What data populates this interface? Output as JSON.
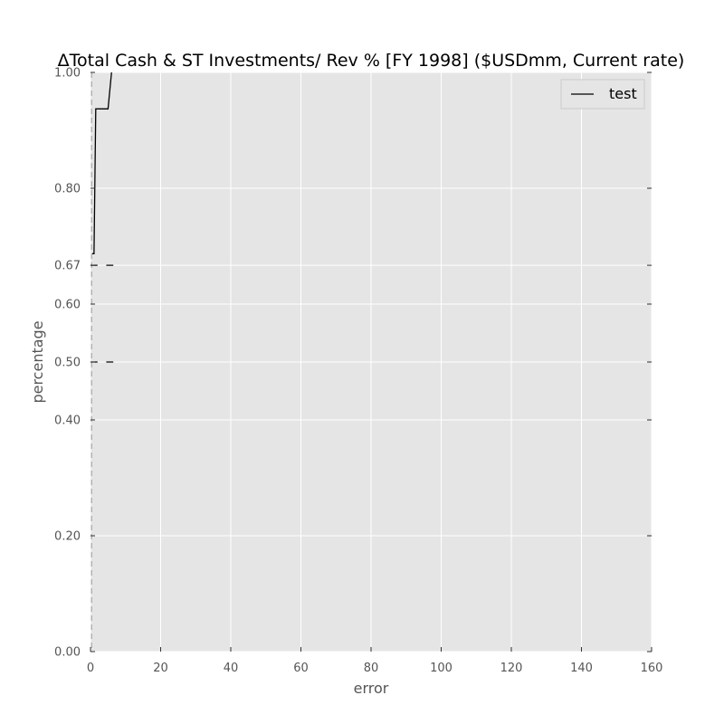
{
  "chart_data": {
    "type": "line",
    "title": "ΔTotal Cash & ST Investments/ Rev % [FY 1998] ($USDmm, Current rate)",
    "xlabel": "error",
    "ylabel": "percentage",
    "xlim": [
      0,
      160
    ],
    "ylim": [
      0,
      1
    ],
    "x_ticks": [
      0,
      20,
      40,
      60,
      80,
      100,
      120,
      140,
      160
    ],
    "x_tick_labels": [
      "0",
      "20",
      "40",
      "60",
      "80",
      "100",
      "120",
      "140",
      "160"
    ],
    "y_ticks": [
      0.0,
      0.2,
      0.4,
      0.5,
      0.6,
      0.667,
      0.8,
      1.0
    ],
    "y_tick_labels": [
      "0.00",
      "0.20",
      "0.40",
      "0.50",
      "0.60",
      "0.67",
      "0.80",
      "1.00"
    ],
    "grid": true,
    "legend": "top-right",
    "series": [
      {
        "name": "test",
        "color": "#000000",
        "x": [
          0.5,
          1,
          1.5,
          2,
          5,
          6
        ],
        "y": [
          0.687,
          0.687,
          0.937,
          0.937,
          0.937,
          1.0
        ]
      }
    ],
    "reference_lines": {
      "vertical_dashed_x": 0.3,
      "horizontal_dash_levels": [
        0.667,
        0.5
      ],
      "dash_segments_x": [
        [
          0,
          2
        ],
        [
          4.5,
          6.5
        ]
      ]
    },
    "colors": {
      "plot_background": "#e5e5e5",
      "grid": "#ffffff",
      "line": "#000000",
      "reference": "#999999"
    }
  }
}
